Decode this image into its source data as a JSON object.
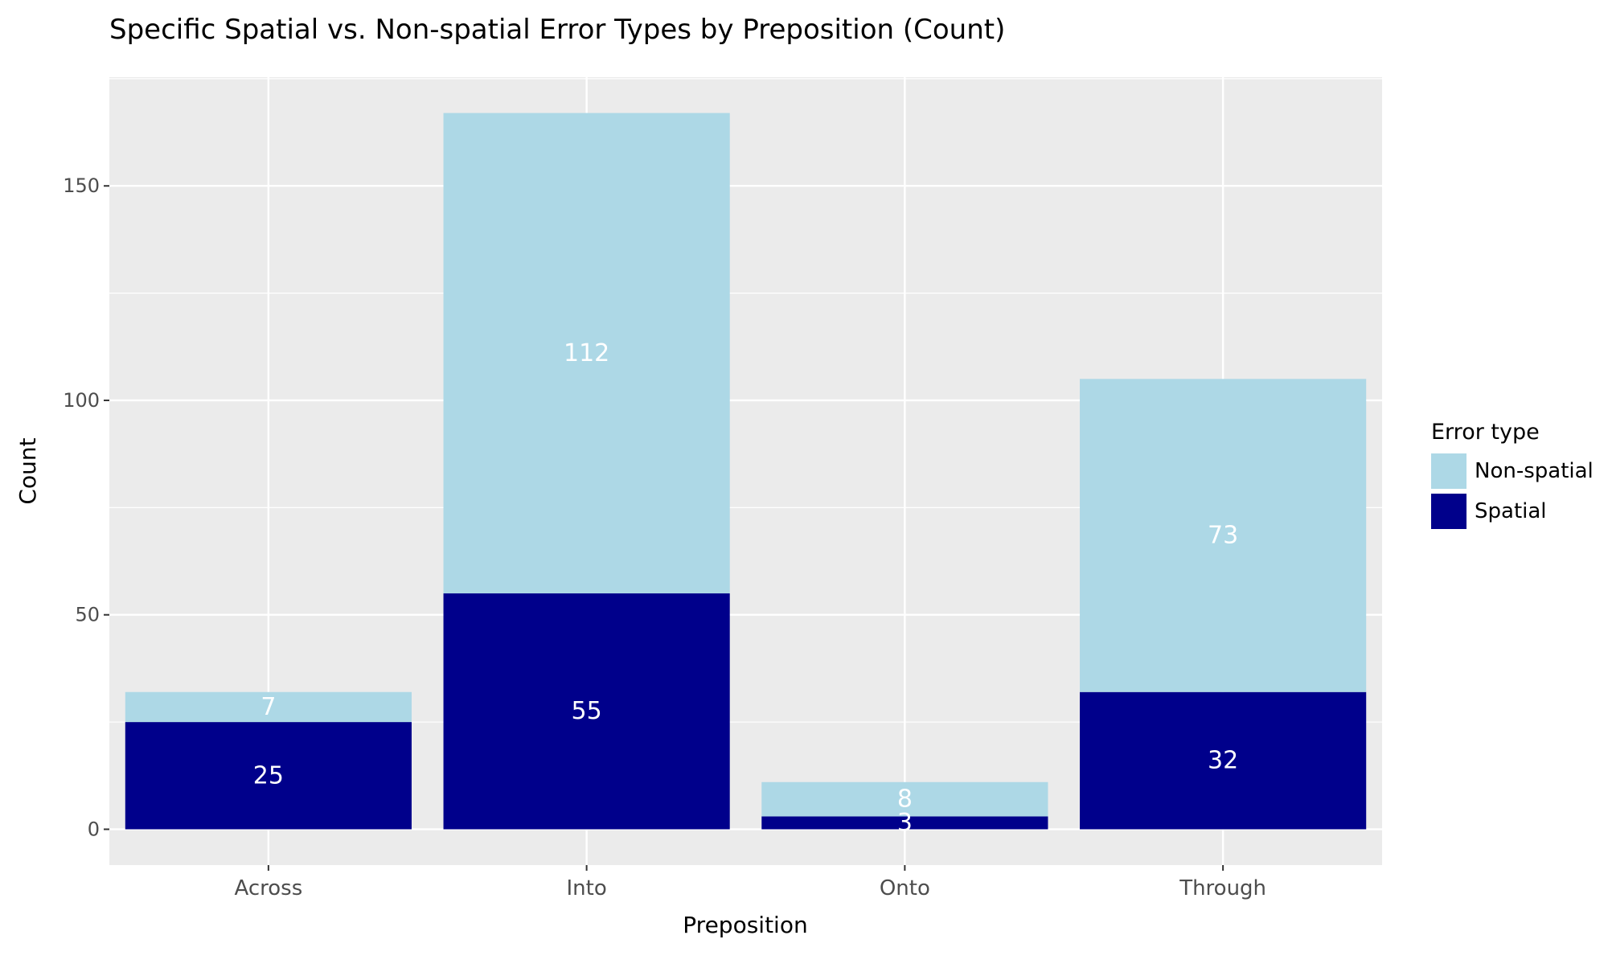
{
  "chart_data": {
    "type": "bar",
    "stacked": true,
    "title": "Specific Spatial vs. Non-spatial Error Types by Preposition (Count)",
    "xlabel": "Preposition",
    "ylabel": "Count",
    "categories": [
      "Across",
      "Into",
      "Onto",
      "Through"
    ],
    "series": [
      {
        "name": "Spatial",
        "values": [
          25,
          55,
          3,
          32
        ],
        "color": "#00008b"
      },
      {
        "name": "Non-spatial",
        "values": [
          7,
          112,
          8,
          73
        ],
        "color": "#add8e6"
      }
    ],
    "yticks": [
      0,
      50,
      100,
      150
    ],
    "ylim": [
      -8.35,
      175.35
    ],
    "grid": true,
    "legend": {
      "title": "Error type",
      "position": "right",
      "entries": [
        {
          "label": "Non-spatial",
          "color": "#add8e6"
        },
        {
          "label": "Spatial",
          "color": "#00008b"
        }
      ]
    }
  }
}
